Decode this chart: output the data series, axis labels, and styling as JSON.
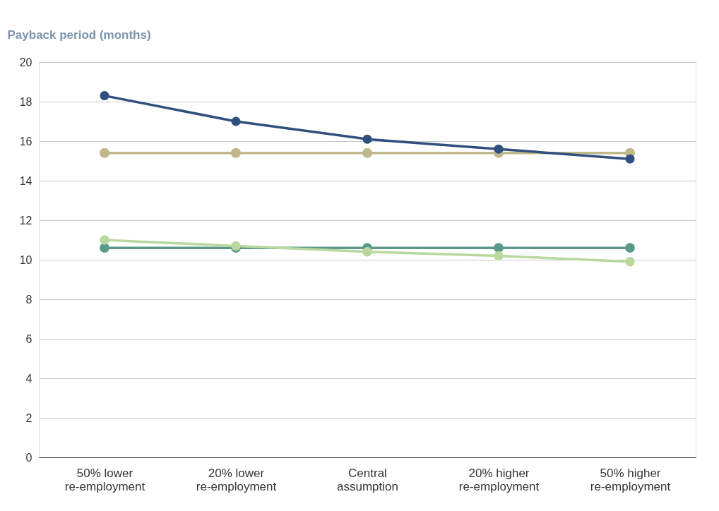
{
  "chart_data": {
    "type": "line",
    "ylabel": "Payback period (months)",
    "categories": [
      "50% lower re-employment",
      "20% lower re-employment",
      "Central assumption",
      "20% higher re-employment",
      "50% higher re-employment"
    ],
    "series": [
      {
        "color": "#bfb88a",
        "values": [
          15.4,
          15.4,
          15.4,
          15.4,
          15.4
        ]
      },
      {
        "color": "#5b9a8b",
        "values": [
          10.6,
          10.6,
          10.6,
          10.6,
          10.6
        ]
      },
      {
        "color": "#b9d89e",
        "values": [
          11.0,
          10.7,
          10.4,
          10.2,
          9.9
        ]
      },
      {
        "color": "#2f4f7f",
        "values": [
          18.3,
          17.0,
          16.1,
          15.6,
          15.1
        ]
      }
    ],
    "ylim": [
      0,
      20
    ],
    "yticks": [
      0,
      2,
      4,
      6,
      8,
      10,
      12,
      14,
      16,
      18,
      20
    ],
    "grid": "y",
    "legend": false,
    "marker": "circle",
    "line_style": "solid"
  }
}
